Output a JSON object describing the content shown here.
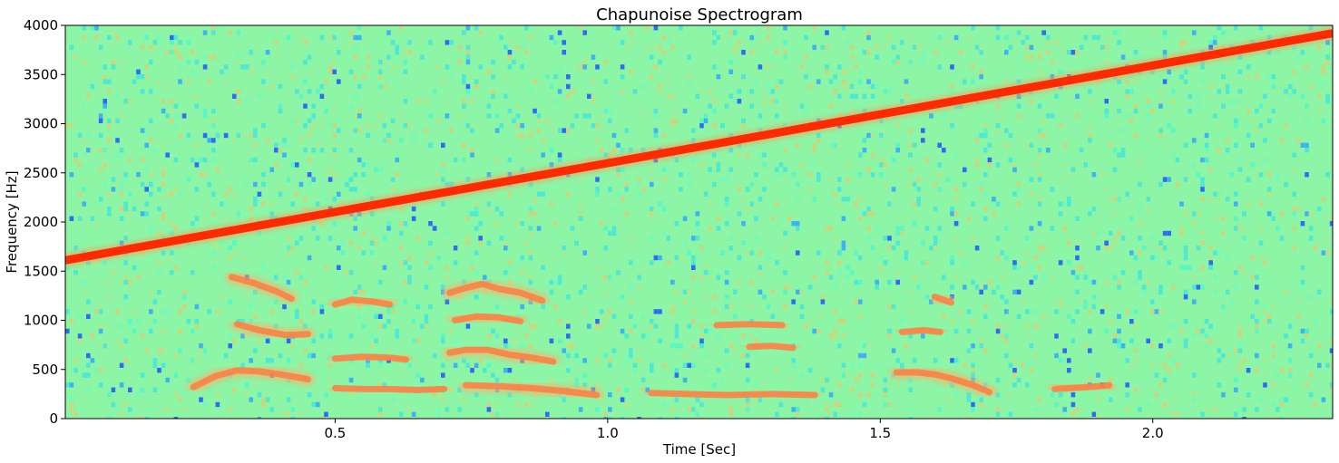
{
  "chart_data": {
    "type": "heatmap",
    "title": "Chapunoise Spectrogram",
    "xlabel": "Time [Sec]",
    "ylabel": "Frequency [Hz]",
    "xlim": [
      0.005,
      2.33
    ],
    "ylim": [
      0,
      4000
    ],
    "x_ticks": [
      0.5,
      1.0,
      1.5,
      2.0
    ],
    "x_tick_labels": [
      "0.5",
      "1.0",
      "1.5",
      "2.0"
    ],
    "y_ticks": [
      0,
      500,
      1000,
      1500,
      2000,
      2500,
      3000,
      3500,
      4000
    ],
    "y_tick_labels": [
      "0",
      "500",
      "1000",
      "1500",
      "2000",
      "2500",
      "3000",
      "3500",
      "4000"
    ],
    "colormap": "rainbow",
    "background_color": "#8cf5a6",
    "grid": false,
    "legend": "none",
    "chirp": {
      "name": "linear chirp",
      "color": "#ff2a00",
      "start": {
        "time": 0.005,
        "frequency": 1610
      },
      "end": {
        "time": 2.33,
        "frequency": 3920
      }
    },
    "speech_harmonics": [
      {
        "points": [
          [
            0.24,
            320
          ],
          [
            0.28,
            430
          ],
          [
            0.32,
            490
          ],
          [
            0.36,
            480
          ],
          [
            0.4,
            450
          ],
          [
            0.45,
            400
          ]
        ]
      },
      {
        "points": [
          [
            0.32,
            960
          ],
          [
            0.36,
            900
          ],
          [
            0.41,
            850
          ],
          [
            0.45,
            860
          ]
        ]
      },
      {
        "points": [
          [
            0.31,
            1440
          ],
          [
            0.35,
            1380
          ],
          [
            0.39,
            1300
          ],
          [
            0.42,
            1220
          ]
        ]
      },
      {
        "points": [
          [
            0.5,
            310
          ],
          [
            0.55,
            300
          ],
          [
            0.6,
            300
          ],
          [
            0.65,
            290
          ],
          [
            0.7,
            300
          ]
        ]
      },
      {
        "points": [
          [
            0.5,
            610
          ],
          [
            0.55,
            630
          ],
          [
            0.6,
            620
          ],
          [
            0.63,
            600
          ]
        ]
      },
      {
        "points": [
          [
            0.5,
            1160
          ],
          [
            0.53,
            1210
          ],
          [
            0.57,
            1190
          ],
          [
            0.6,
            1160
          ]
        ]
      },
      {
        "points": [
          [
            0.71,
            670
          ],
          [
            0.74,
            700
          ],
          [
            0.78,
            700
          ],
          [
            0.82,
            650
          ],
          [
            0.86,
            620
          ],
          [
            0.9,
            580
          ]
        ]
      },
      {
        "points": [
          [
            0.72,
            1000
          ],
          [
            0.76,
            1040
          ],
          [
            0.8,
            1030
          ],
          [
            0.84,
            990
          ]
        ]
      },
      {
        "points": [
          [
            0.71,
            1280
          ],
          [
            0.74,
            1330
          ],
          [
            0.77,
            1370
          ],
          [
            0.8,
            1320
          ],
          [
            0.84,
            1280
          ],
          [
            0.88,
            1200
          ]
        ]
      },
      {
        "points": [
          [
            0.74,
            340
          ],
          [
            0.8,
            330
          ],
          [
            0.86,
            310
          ],
          [
            0.92,
            280
          ],
          [
            0.98,
            240
          ]
        ]
      },
      {
        "points": [
          [
            1.08,
            260
          ],
          [
            1.15,
            250
          ],
          [
            1.22,
            240
          ],
          [
            1.3,
            250
          ],
          [
            1.38,
            240
          ]
        ]
      },
      {
        "points": [
          [
            1.26,
            730
          ],
          [
            1.3,
            740
          ],
          [
            1.34,
            720
          ]
        ]
      },
      {
        "points": [
          [
            1.2,
            950
          ],
          [
            1.26,
            960
          ],
          [
            1.32,
            950
          ]
        ]
      },
      {
        "points": [
          [
            1.53,
            470
          ],
          [
            1.57,
            470
          ],
          [
            1.6,
            450
          ],
          [
            1.63,
            410
          ],
          [
            1.67,
            340
          ],
          [
            1.7,
            270
          ]
        ]
      },
      {
        "points": [
          [
            1.54,
            880
          ],
          [
            1.58,
            900
          ],
          [
            1.61,
            880
          ]
        ]
      },
      {
        "points": [
          [
            1.6,
            1240
          ],
          [
            1.63,
            1180
          ]
        ]
      },
      {
        "points": [
          [
            1.82,
            300
          ],
          [
            1.88,
            320
          ],
          [
            1.92,
            340
          ]
        ]
      }
    ]
  }
}
